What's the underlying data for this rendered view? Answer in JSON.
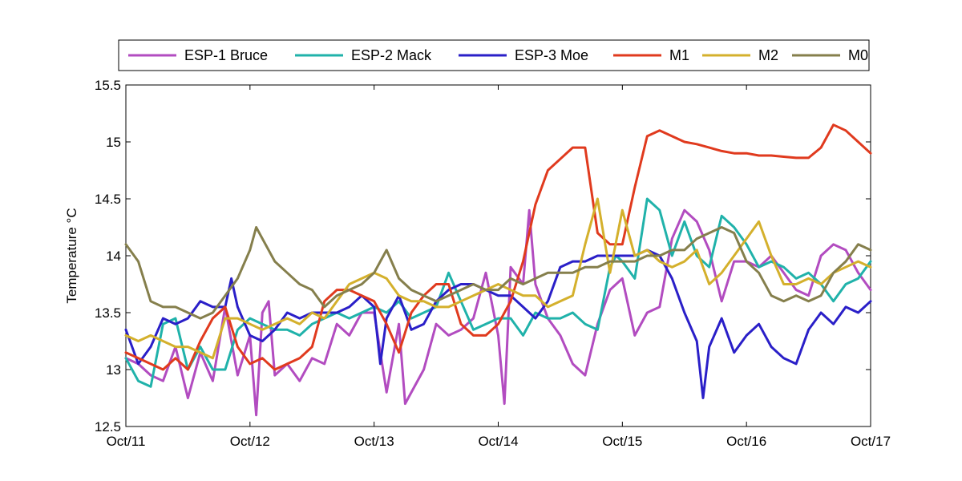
{
  "chart_data": {
    "type": "line",
    "title": "",
    "xlabel": "",
    "ylabel": "Temperature °C",
    "x_ticks": [
      "Oct/11",
      "Oct/12",
      "Oct/13",
      "Oct/14",
      "Oct/15",
      "Oct/16",
      "Oct/17"
    ],
    "x_tick_values": [
      0,
      1,
      2,
      3,
      4,
      5,
      6
    ],
    "xlim": [
      0,
      6
    ],
    "ylim": [
      12.5,
      15.5
    ],
    "y_ticks": [
      "12.5",
      "13",
      "13.5",
      "14",
      "14.5",
      "15",
      "15.5"
    ],
    "grid": false,
    "legend_position": "top",
    "series": [
      {
        "name": "ESP-1 Bruce",
        "color": "#b24cc0",
        "x": [
          0,
          0.1,
          0.2,
          0.3,
          0.4,
          0.5,
          0.6,
          0.7,
          0.8,
          0.9,
          1.0,
          1.05,
          1.1,
          1.15,
          1.2,
          1.3,
          1.4,
          1.5,
          1.6,
          1.7,
          1.8,
          1.9,
          2.0,
          2.1,
          2.2,
          2.25,
          2.3,
          2.4,
          2.5,
          2.6,
          2.7,
          2.8,
          2.9,
          3.0,
          3.05,
          3.1,
          3.2,
          3.25,
          3.3,
          3.4,
          3.5,
          3.6,
          3.7,
          3.8,
          3.9,
          4.0,
          4.1,
          4.2,
          4.3,
          4.4,
          4.5,
          4.6,
          4.7,
          4.8,
          4.9,
          5.0,
          5.1,
          5.2,
          5.3,
          5.4,
          5.5,
          5.6,
          5.7,
          5.8,
          5.9,
          6.0
        ],
        "y": [
          13.1,
          13.05,
          12.95,
          12.9,
          13.2,
          12.75,
          13.15,
          12.9,
          13.55,
          12.95,
          13.3,
          12.6,
          13.5,
          13.6,
          12.95,
          13.05,
          12.9,
          13.1,
          13.05,
          13.4,
          13.3,
          13.5,
          13.5,
          12.8,
          13.4,
          12.7,
          12.8,
          13.0,
          13.4,
          13.3,
          13.35,
          13.45,
          13.85,
          13.3,
          12.7,
          13.9,
          13.75,
          14.4,
          13.75,
          13.45,
          13.3,
          13.05,
          12.95,
          13.4,
          13.7,
          13.8,
          13.3,
          13.5,
          13.55,
          14.15,
          14.4,
          14.3,
          14.05,
          13.6,
          13.95,
          13.95,
          13.9,
          14.0,
          13.85,
          13.7,
          13.65,
          14.0,
          14.1,
          14.05,
          13.85,
          13.7
        ]
      },
      {
        "name": "ESP-2 Mack",
        "color": "#20b2aa",
        "x": [
          0,
          0.1,
          0.2,
          0.3,
          0.4,
          0.5,
          0.6,
          0.7,
          0.8,
          0.9,
          1.0,
          1.1,
          1.2,
          1.3,
          1.4,
          1.5,
          1.6,
          1.7,
          1.8,
          1.9,
          2.0,
          2.1,
          2.2,
          2.3,
          2.4,
          2.5,
          2.6,
          2.7,
          2.8,
          2.9,
          3.0,
          3.1,
          3.2,
          3.3,
          3.4,
          3.5,
          3.6,
          3.7,
          3.8,
          3.9,
          3.95,
          4.0,
          4.1,
          4.2,
          4.3,
          4.4,
          4.5,
          4.6,
          4.7,
          4.8,
          4.9,
          5.0,
          5.1,
          5.2,
          5.3,
          5.4,
          5.5,
          5.6,
          5.7,
          5.8,
          5.9,
          6.0
        ],
        "y": [
          13.1,
          12.9,
          12.85,
          13.4,
          13.45,
          13.0,
          13.2,
          13.0,
          13.0,
          13.35,
          13.45,
          13.4,
          13.35,
          13.35,
          13.3,
          13.4,
          13.45,
          13.5,
          13.45,
          13.5,
          13.55,
          13.5,
          13.6,
          13.45,
          13.5,
          13.55,
          13.85,
          13.6,
          13.35,
          13.4,
          13.45,
          13.45,
          13.3,
          13.5,
          13.45,
          13.45,
          13.5,
          13.4,
          13.35,
          13.9,
          14.0,
          13.95,
          13.8,
          14.5,
          14.4,
          14.0,
          14.3,
          14.0,
          13.9,
          14.35,
          14.25,
          14.1,
          13.9,
          13.95,
          13.9,
          13.8,
          13.85,
          13.75,
          13.6,
          13.75,
          13.8,
          13.95
        ]
      },
      {
        "name": "ESP-3 Moe",
        "color": "#2a1fc8",
        "x": [
          0,
          0.1,
          0.2,
          0.3,
          0.4,
          0.5,
          0.6,
          0.7,
          0.8,
          0.85,
          0.9,
          1.0,
          1.1,
          1.2,
          1.3,
          1.4,
          1.5,
          1.6,
          1.7,
          1.8,
          1.9,
          2.0,
          2.05,
          2.1,
          2.2,
          2.3,
          2.4,
          2.5,
          2.6,
          2.7,
          2.8,
          2.9,
          3.0,
          3.1,
          3.2,
          3.3,
          3.4,
          3.5,
          3.6,
          3.7,
          3.8,
          3.9,
          4.0,
          4.1,
          4.2,
          4.3,
          4.4,
          4.5,
          4.6,
          4.65,
          4.7,
          4.8,
          4.9,
          5.0,
          5.1,
          5.2,
          5.3,
          5.4,
          5.5,
          5.6,
          5.7,
          5.8,
          5.9,
          6.0
        ],
        "y": [
          13.35,
          13.05,
          13.2,
          13.45,
          13.4,
          13.45,
          13.6,
          13.55,
          13.55,
          13.8,
          13.55,
          13.3,
          13.25,
          13.35,
          13.5,
          13.45,
          13.5,
          13.5,
          13.5,
          13.55,
          13.65,
          13.55,
          13.05,
          13.45,
          13.65,
          13.35,
          13.4,
          13.6,
          13.7,
          13.75,
          13.75,
          13.7,
          13.65,
          13.65,
          13.55,
          13.45,
          13.6,
          13.9,
          13.95,
          13.95,
          14.0,
          14.0,
          14.0,
          14.0,
          14.05,
          14.0,
          13.8,
          13.5,
          13.25,
          12.75,
          13.2,
          13.45,
          13.15,
          13.3,
          13.4,
          13.2,
          13.1,
          13.05,
          13.35,
          13.5,
          13.4,
          13.55,
          13.5,
          13.6
        ]
      },
      {
        "name": "M1",
        "color": "#e03a1e",
        "x": [
          0,
          0.1,
          0.2,
          0.3,
          0.4,
          0.5,
          0.6,
          0.7,
          0.8,
          0.9,
          1.0,
          1.1,
          1.2,
          1.3,
          1.4,
          1.5,
          1.6,
          1.7,
          1.8,
          1.9,
          2.0,
          2.1,
          2.2,
          2.3,
          2.4,
          2.5,
          2.6,
          2.7,
          2.8,
          2.9,
          3.0,
          3.1,
          3.2,
          3.3,
          3.4,
          3.5,
          3.6,
          3.7,
          3.8,
          3.9,
          4.0,
          4.1,
          4.2,
          4.3,
          4.4,
          4.5,
          4.6,
          4.7,
          4.8,
          4.9,
          5.0,
          5.1,
          5.2,
          5.3,
          5.4,
          5.5,
          5.6,
          5.7,
          5.8,
          5.9,
          6.0
        ],
        "y": [
          13.15,
          13.1,
          13.05,
          13.0,
          13.1,
          13.0,
          13.25,
          13.45,
          13.55,
          13.2,
          13.05,
          13.1,
          13.0,
          13.05,
          13.1,
          13.2,
          13.6,
          13.7,
          13.7,
          13.65,
          13.6,
          13.4,
          13.15,
          13.5,
          13.65,
          13.75,
          13.75,
          13.4,
          13.3,
          13.3,
          13.4,
          13.6,
          13.95,
          14.45,
          14.75,
          14.85,
          14.95,
          14.95,
          14.2,
          14.1,
          14.1,
          14.6,
          15.05,
          15.1,
          15.05,
          15.0,
          14.98,
          14.95,
          14.92,
          14.9,
          14.9,
          14.88,
          14.88,
          14.87,
          14.86,
          14.86,
          14.95,
          15.15,
          15.1,
          15.0,
          14.9
        ]
      },
      {
        "name": "M2",
        "color": "#d4b02c",
        "x": [
          0,
          0.1,
          0.2,
          0.3,
          0.4,
          0.5,
          0.6,
          0.7,
          0.8,
          0.9,
          1.0,
          1.1,
          1.2,
          1.3,
          1.4,
          1.5,
          1.6,
          1.7,
          1.8,
          1.9,
          2.0,
          2.1,
          2.2,
          2.3,
          2.4,
          2.5,
          2.6,
          2.7,
          2.8,
          2.9,
          3.0,
          3.1,
          3.2,
          3.3,
          3.4,
          3.5,
          3.6,
          3.7,
          3.8,
          3.9,
          4.0,
          4.1,
          4.2,
          4.3,
          4.4,
          4.5,
          4.6,
          4.7,
          4.8,
          4.9,
          5.0,
          5.1,
          5.2,
          5.3,
          5.4,
          5.5,
          5.6,
          5.7,
          5.8,
          5.9,
          6.0
        ],
        "y": [
          13.3,
          13.25,
          13.3,
          13.25,
          13.2,
          13.2,
          13.15,
          13.1,
          13.45,
          13.45,
          13.4,
          13.35,
          13.4,
          13.45,
          13.4,
          13.5,
          13.45,
          13.6,
          13.75,
          13.8,
          13.85,
          13.8,
          13.65,
          13.6,
          13.6,
          13.55,
          13.55,
          13.6,
          13.65,
          13.7,
          13.75,
          13.7,
          13.65,
          13.65,
          13.55,
          13.6,
          13.65,
          14.1,
          14.5,
          13.85,
          14.4,
          14.0,
          14.05,
          13.95,
          13.9,
          13.95,
          14.05,
          13.75,
          13.85,
          14.0,
          14.15,
          14.3,
          14.0,
          13.75,
          13.75,
          13.8,
          13.75,
          13.85,
          13.9,
          13.95,
          13.9
        ]
      },
      {
        "name": "M0",
        "color": "#857f4c",
        "x": [
          0,
          0.1,
          0.2,
          0.3,
          0.4,
          0.5,
          0.6,
          0.7,
          0.8,
          0.9,
          1.0,
          1.05,
          1.1,
          1.2,
          1.3,
          1.4,
          1.5,
          1.6,
          1.7,
          1.8,
          1.9,
          2.0,
          2.05,
          2.1,
          2.2,
          2.3,
          2.4,
          2.5,
          2.6,
          2.7,
          2.8,
          2.9,
          3.0,
          3.1,
          3.2,
          3.3,
          3.4,
          3.5,
          3.6,
          3.7,
          3.8,
          3.9,
          4.0,
          4.1,
          4.2,
          4.3,
          4.4,
          4.5,
          4.6,
          4.7,
          4.8,
          4.9,
          5.0,
          5.1,
          5.2,
          5.3,
          5.4,
          5.5,
          5.6,
          5.7,
          5.8,
          5.9,
          6.0
        ],
        "y": [
          14.1,
          13.95,
          13.6,
          13.55,
          13.55,
          13.5,
          13.45,
          13.5,
          13.65,
          13.8,
          14.05,
          14.25,
          14.15,
          13.95,
          13.85,
          13.75,
          13.7,
          13.55,
          13.65,
          13.7,
          13.75,
          13.85,
          13.95,
          14.05,
          13.8,
          13.7,
          13.65,
          13.6,
          13.65,
          13.7,
          13.75,
          13.7,
          13.7,
          13.8,
          13.75,
          13.8,
          13.85,
          13.85,
          13.85,
          13.9,
          13.9,
          13.95,
          13.95,
          13.95,
          14.0,
          14.0,
          14.05,
          14.05,
          14.15,
          14.2,
          14.25,
          14.2,
          13.95,
          13.85,
          13.65,
          13.6,
          13.65,
          13.6,
          13.65,
          13.85,
          13.95,
          14.1,
          14.05
        ]
      }
    ]
  }
}
